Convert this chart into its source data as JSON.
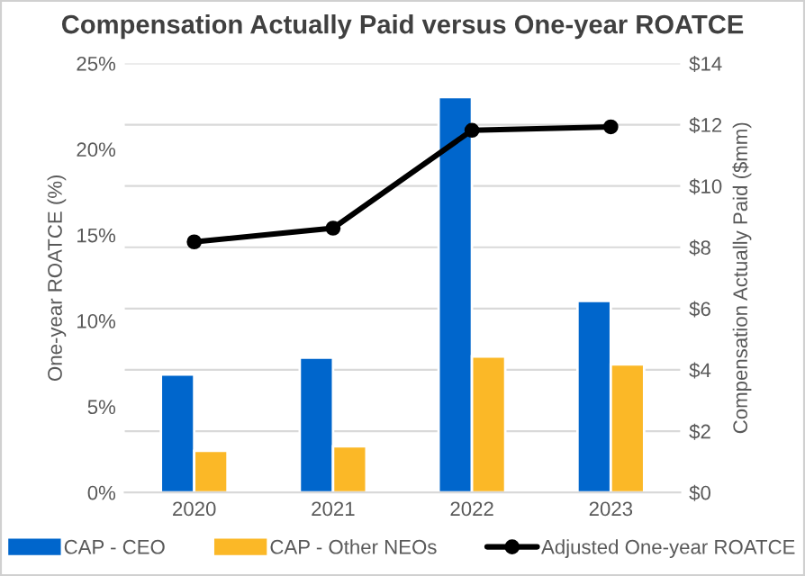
{
  "chart_data": {
    "type": "bar",
    "title": "Compensation Actually Paid versus One-year ROATCE",
    "categories": [
      "2020",
      "2021",
      "2022",
      "2023"
    ],
    "ylabel": "One-year ROATCE (%)",
    "y2label": "Compensation Actually Paid ($mm)",
    "series": [
      {
        "name": "CAP - CEO",
        "color": "#0066cc",
        "values": [
          3.85,
          4.4,
          12.9,
          6.25
        ],
        "axis": "y2"
      },
      {
        "name": "CAP - Other NEOs",
        "color": "#fbb827",
        "values": [
          1.36,
          1.51,
          4.44,
          4.18
        ],
        "axis": "y2"
      },
      {
        "name": "Adjusted One-year ROATCE",
        "type": "line",
        "color": "#000000",
        "values": [
          14.6,
          15.4,
          21.1,
          21.3
        ],
        "axis": "y",
        "marker": "circle",
        "line_style": "solid"
      }
    ],
    "ylim": [
      0,
      25
    ],
    "yticks": [
      {
        "value": 0,
        "label": "0%"
      },
      {
        "value": 5,
        "label": "5%"
      },
      {
        "value": 10,
        "label": "10%"
      },
      {
        "value": 15,
        "label": "15%"
      },
      {
        "value": 20,
        "label": "20%"
      },
      {
        "value": 25,
        "label": "25%"
      }
    ],
    "y2lim": [
      0,
      14
    ],
    "y2ticks": [
      {
        "value": 0,
        "label": "$0"
      },
      {
        "value": 2,
        "label": "$2"
      },
      {
        "value": 4,
        "label": "$4"
      },
      {
        "value": 6,
        "label": "$6"
      },
      {
        "value": 8,
        "label": "$8"
      },
      {
        "value": 10,
        "label": "$10"
      },
      {
        "value": 12,
        "label": "$12"
      },
      {
        "value": 14,
        "label": "$14"
      }
    ],
    "grid": "y",
    "legend": "bottom"
  }
}
